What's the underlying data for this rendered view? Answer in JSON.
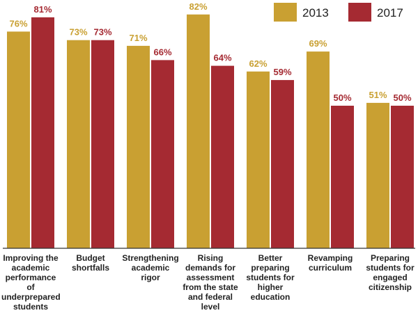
{
  "chart_data": {
    "type": "bar",
    "categories": [
      "Improving the academic performance of underprepared students",
      "Budget shortfalls",
      "Strengthening academic rigor",
      "Rising demands for assessment from the state and federal level",
      "Better preparing students for higher education",
      "Revamping curriculum",
      "Preparing students for engaged citizenship"
    ],
    "series": [
      {
        "name": "2013",
        "color": "#c9a032",
        "values": [
          76,
          73,
          71,
          82,
          62,
          69,
          51
        ],
        "value_labels": [
          "76%",
          "73%",
          "71%",
          "82%",
          "62%",
          "69%",
          "51%"
        ]
      },
      {
        "name": "2017",
        "color": "#a52a32",
        "values": [
          81,
          73,
          66,
          64,
          59,
          50,
          50
        ],
        "value_labels": [
          "81%",
          "73%",
          "66%",
          "64%",
          "59%",
          "50%",
          "50%"
        ]
      }
    ],
    "legend": "top-right"
  }
}
